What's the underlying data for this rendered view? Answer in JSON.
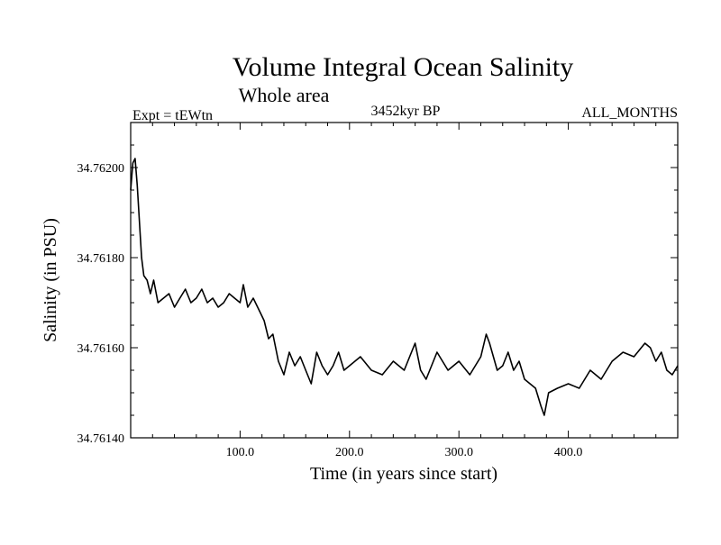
{
  "chart_data": {
    "type": "line",
    "title": "Volume Integral Ocean Salinity",
    "subtitle": "Whole area",
    "experiment_label": "Expt = tEWtn",
    "period_label": "3452kyr BP",
    "months_label": "ALL_MONTHS",
    "xlabel": "Time (in years since start)",
    "ylabel": "Salinity (in PSU)",
    "xlim": [
      0,
      500
    ],
    "ylim": [
      34.7614,
      34.7621
    ],
    "x_ticks": [
      100,
      200,
      300,
      400
    ],
    "x_tick_labels": [
      "100.0",
      "200.0",
      "300.0",
      "400.0"
    ],
    "y_ticks": [
      34.7614,
      34.7616,
      34.7618,
      34.762
    ],
    "y_tick_labels": [
      "34.76140",
      "34.76160",
      "34.76180",
      "34.76200"
    ],
    "series": [
      {
        "name": "Salinity",
        "x": [
          0,
          2,
          4,
          6,
          8,
          10,
          12,
          15,
          18,
          21,
          25,
          30,
          35,
          40,
          45,
          50,
          55,
          60,
          65,
          70,
          75,
          80,
          85,
          90,
          95,
          100,
          103,
          107,
          112,
          118,
          122,
          126,
          130,
          135,
          140,
          145,
          150,
          155,
          160,
          165,
          170,
          175,
          180,
          185,
          190,
          195,
          200,
          210,
          220,
          230,
          240,
          250,
          260,
          265,
          270,
          280,
          290,
          300,
          310,
          320,
          325,
          328,
          335,
          340,
          345,
          350,
          355,
          360,
          365,
          370,
          375,
          378,
          382,
          390,
          400,
          410,
          420,
          430,
          440,
          450,
          460,
          470,
          475,
          480,
          485,
          490,
          495,
          500
        ],
        "y": [
          34.76195,
          34.76201,
          34.76202,
          34.76196,
          34.76188,
          34.7618,
          34.76176,
          34.76175,
          34.76172,
          34.76175,
          34.7617,
          34.76171,
          34.76172,
          34.76169,
          34.76171,
          34.76173,
          34.7617,
          34.76171,
          34.76173,
          34.7617,
          34.76171,
          34.76169,
          34.7617,
          34.76172,
          34.76171,
          34.7617,
          34.76174,
          34.76169,
          34.76171,
          34.76168,
          34.76166,
          34.76162,
          34.76163,
          34.76157,
          34.76154,
          34.76159,
          34.76156,
          34.76158,
          34.76155,
          34.76152,
          34.76159,
          34.76156,
          34.76154,
          34.76156,
          34.76159,
          34.76155,
          34.76156,
          34.76158,
          34.76155,
          34.76154,
          34.76157,
          34.76155,
          34.76161,
          34.76155,
          34.76153,
          34.76159,
          34.76155,
          34.76157,
          34.76154,
          34.76158,
          34.76163,
          34.76161,
          34.76155,
          34.76156,
          34.76159,
          34.76155,
          34.76157,
          34.76153,
          34.76152,
          34.76151,
          34.76147,
          34.76145,
          34.7615,
          34.76151,
          34.76152,
          34.76151,
          34.76155,
          34.76153,
          34.76157,
          34.76159,
          34.76158,
          34.76161,
          34.7616,
          34.76157,
          34.76159,
          34.76155,
          34.76154,
          34.76156
        ]
      }
    ]
  }
}
